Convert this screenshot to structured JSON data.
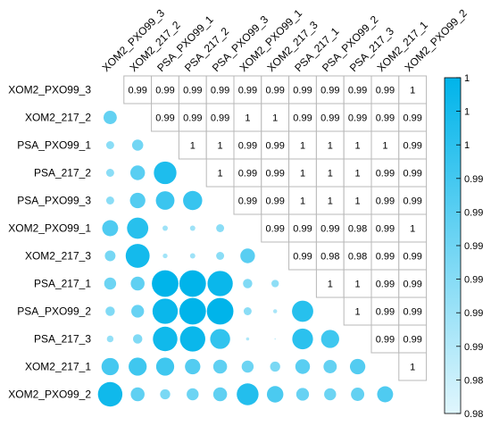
{
  "chart_data": {
    "type": "heatmap",
    "style": "correlogram - circles below diagonal, numbers above diagonal",
    "labels": [
      "XOM2_PXO99_3",
      "XOM2_217_2",
      "PSA_PXO99_1",
      "PSA_217_2",
      "PSA_PXO99_3",
      "XOM2_PXO99_1",
      "XOM2_217_3",
      "PSA_217_1",
      "PSA_PXO99_2",
      "PSA_217_3",
      "XOM2_217_1",
      "XOM2_PXO99_2"
    ],
    "upper_values": [
      [
        null,
        "0.99",
        "0.99",
        "0.99",
        "0.99",
        "0.99",
        "0.99",
        "0.99",
        "0.99",
        "0.99",
        "0.99",
        "1"
      ],
      [
        null,
        null,
        "0.99",
        "0.99",
        "0.99",
        "1",
        "1",
        "0.99",
        "0.99",
        "0.99",
        "0.99",
        "0.99"
      ],
      [
        null,
        null,
        null,
        "1",
        "1",
        "0.99",
        "0.99",
        "1",
        "1",
        "1",
        "1",
        "0.99"
      ],
      [
        null,
        null,
        null,
        null,
        "1",
        "0.99",
        "0.99",
        "1",
        "1",
        "1",
        "0.99",
        "0.99"
      ],
      [
        null,
        null,
        null,
        null,
        null,
        "0.99",
        "0.99",
        "1",
        "1",
        "1",
        "0.99",
        "0.99"
      ],
      [
        null,
        null,
        null,
        null,
        null,
        null,
        "0.99",
        "0.99",
        "0.99",
        "0.98",
        "0.99",
        "1"
      ],
      [
        null,
        null,
        null,
        null,
        null,
        null,
        null,
        "0.99",
        "0.98",
        "0.98",
        "0.99",
        "0.99"
      ],
      [
        null,
        null,
        null,
        null,
        null,
        null,
        null,
        null,
        "1",
        "1",
        "0.99",
        "0.99"
      ],
      [
        null,
        null,
        null,
        null,
        null,
        null,
        null,
        null,
        null,
        "1",
        "0.99",
        "0.99"
      ],
      [
        null,
        null,
        null,
        null,
        null,
        null,
        null,
        null,
        null,
        null,
        "0.99",
        "0.99"
      ],
      [
        null,
        null,
        null,
        null,
        null,
        null,
        null,
        null,
        null,
        null,
        null,
        "1"
      ],
      [
        null,
        null,
        null,
        null,
        null,
        null,
        null,
        null,
        null,
        null,
        null,
        null
      ]
    ],
    "lower_circle_strength": [
      [],
      [
        0.5
      ],
      [
        0.3,
        0.42
      ],
      [
        0.3,
        0.55,
        0.85
      ],
      [
        0.3,
        0.58,
        0.7,
        0.72
      ],
      [
        0.6,
        0.8,
        0.2,
        0.2,
        0.3
      ],
      [
        0.4,
        0.9,
        0.18,
        0.2,
        0.3,
        0.55
      ],
      [
        0.45,
        0.52,
        1.0,
        1.0,
        0.95,
        0.35,
        0.28
      ],
      [
        0.35,
        0.48,
        0.95,
        1.0,
        1.0,
        0.3,
        0.15,
        0.8
      ],
      [
        0.25,
        0.35,
        0.92,
        0.95,
        0.75,
        0.12,
        0.05,
        0.78,
        0.68
      ],
      [
        0.65,
        0.68,
        0.68,
        0.58,
        0.52,
        0.45,
        0.38,
        0.55,
        0.5,
        0.58
      ],
      [
        0.92,
        0.52,
        0.38,
        0.45,
        0.52,
        0.82,
        0.62,
        0.48,
        0.45,
        0.5,
        0.6
      ]
    ],
    "color_scale": {
      "min": 0.98,
      "max": 1,
      "low_color": "#e0f6fd",
      "high_color": "#00b4ea",
      "tick_labels": [
        "1",
        "1",
        "1",
        "0.99",
        "0.99",
        "0.99",
        "0.99",
        "0.99",
        "0.99",
        "0.98",
        "0.98"
      ]
    }
  }
}
